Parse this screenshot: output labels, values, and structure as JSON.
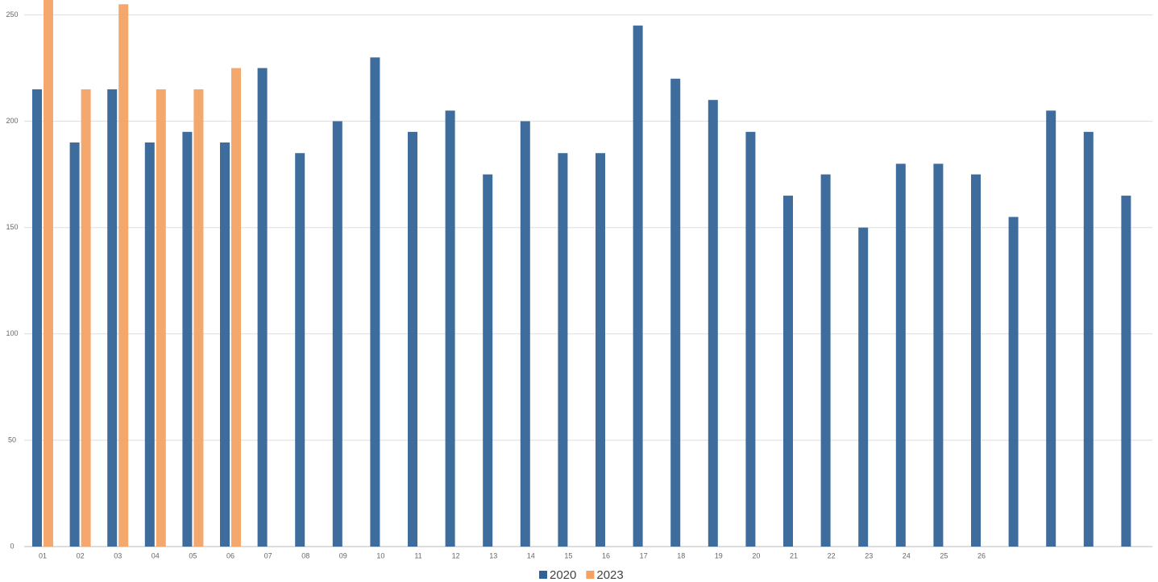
{
  "chart_data": {
    "type": "bar",
    "categories": [
      "01",
      "02",
      "03",
      "04",
      "05",
      "06",
      "07",
      "08",
      "09",
      "10",
      "11",
      "12",
      "13",
      "14",
      "15",
      "16",
      "17",
      "18",
      "19",
      "20",
      "21",
      "22",
      "23",
      "24",
      "25",
      "26",
      null,
      null,
      null,
      null
    ],
    "series": [
      {
        "name": "2020",
        "color": "#2f6296",
        "values": [
          215,
          190,
          215,
          190,
          195,
          190,
          225,
          185,
          200,
          230,
          195,
          205,
          175,
          200,
          185,
          185,
          245,
          220,
          210,
          195,
          165,
          175,
          150,
          180,
          180,
          175,
          155,
          205,
          195,
          165
        ]
      },
      {
        "name": "2023",
        "color": "#f4a162",
        "values": [
          260,
          215,
          255,
          215,
          215,
          225,
          null,
          null,
          null,
          null,
          null,
          null,
          null,
          null,
          null,
          null,
          null,
          null,
          null,
          null,
          null,
          null,
          null,
          null,
          null,
          null,
          null,
          null,
          null,
          null
        ]
      }
    ],
    "ylim": [
      0,
      257
    ],
    "yticks": [
      0,
      50,
      100,
      150,
      200,
      250
    ],
    "grid": true,
    "legend": "bottom"
  }
}
